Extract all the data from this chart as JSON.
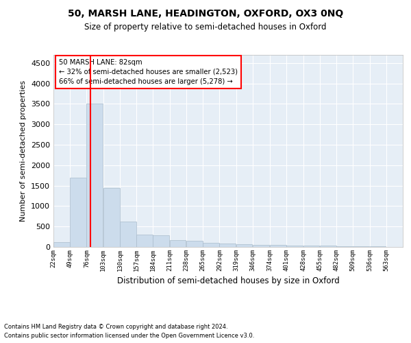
{
  "title": "50, MARSH LANE, HEADINGTON, OXFORD, OX3 0NQ",
  "subtitle": "Size of property relative to semi-detached houses in Oxford",
  "xlabel": "Distribution of semi-detached houses by size in Oxford",
  "ylabel": "Number of semi-detached properties",
  "footnote1": "Contains HM Land Registry data © Crown copyright and database right 2024.",
  "footnote2": "Contains public sector information licensed under the Open Government Licence v3.0.",
  "annotation_title": "50 MARSH LANE: 82sqm",
  "annotation_line1": "← 32% of semi-detached houses are smaller (2,523)",
  "annotation_line2": "66% of semi-detached houses are larger (5,278) →",
  "bar_color": "#ccdcec",
  "bar_edge_color": "#aabccc",
  "red_line_x": 82,
  "background_color": "#e6eef6",
  "ylim": [
    0,
    4700
  ],
  "yticks": [
    0,
    500,
    1000,
    1500,
    2000,
    2500,
    3000,
    3500,
    4000,
    4500
  ],
  "bins": [
    22,
    49,
    76,
    103,
    130,
    157,
    184,
    211,
    238,
    265,
    292,
    319,
    346,
    374,
    401,
    428,
    455,
    482,
    509,
    536,
    563
  ],
  "values": [
    120,
    1700,
    3500,
    1450,
    620,
    295,
    290,
    160,
    150,
    95,
    90,
    75,
    50,
    50,
    40,
    35,
    30,
    25,
    25,
    20,
    0
  ]
}
